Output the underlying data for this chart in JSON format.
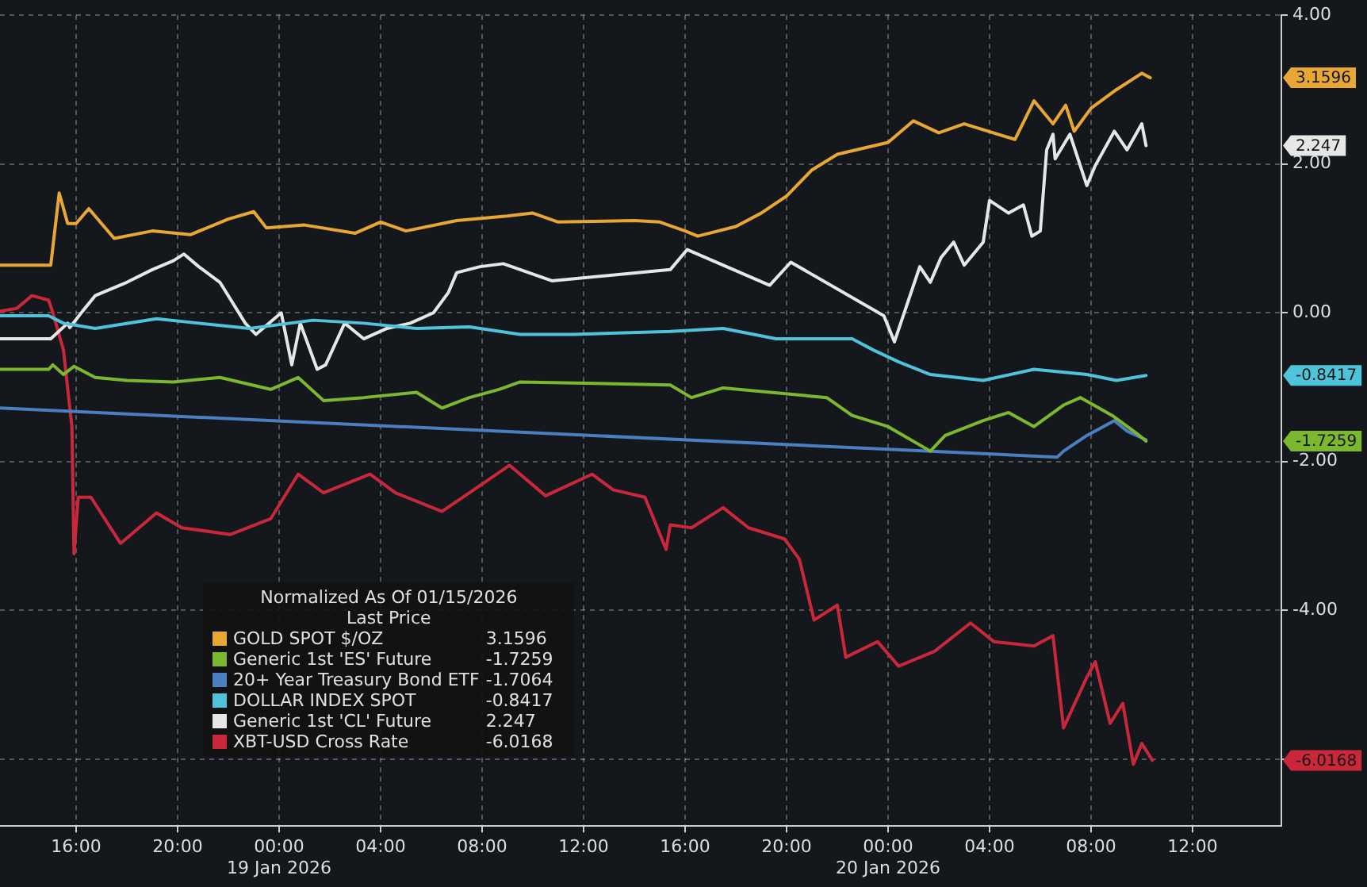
{
  "chart_data": {
    "type": "line",
    "legend": "bottom left",
    "annotations": [
      "3.1596",
      "-1.7259",
      "-1.7064",
      "-0.8417",
      "2.247",
      "-6.0168"
    ],
    "legend_title": "Normalized As Of 01/15/2026\nLast Price",
    "grid": true,
    "xlim": [
      "2026-01-18T13:00",
      "2026-01-20T15:30"
    ],
    "xticks": [
      {
        "value": "2026-01-18T16:00",
        "label": "16:00"
      },
      {
        "value": "2026-01-18T20:00",
        "label": "20:00"
      },
      {
        "value": "2026-01-19T00:00",
        "label": "00:00\n19 Jan 2026"
      },
      {
        "value": "2026-01-19T04:00",
        "label": "04:00"
      },
      {
        "value": "2026-01-19T08:00",
        "label": "08:00"
      },
      {
        "value": "2026-01-19T12:00",
        "label": "12:00"
      },
      {
        "value": "2026-01-19T16:00",
        "label": "16:00"
      },
      {
        "value": "2026-01-19T20:00",
        "label": "20:00"
      },
      {
        "value": "2026-01-20T00:00",
        "label": "00:00\n20 Jan 2026"
      },
      {
        "value": "2026-01-20T04:00",
        "label": "04:00"
      },
      {
        "value": "2026-01-20T08:00",
        "label": "08:00"
      },
      {
        "value": "2026-01-20T12:00",
        "label": "12:00"
      }
    ],
    "ylim": [
      -6.9,
      4.0
    ],
    "yticks": [
      {
        "value": 4,
        "label": "4.00"
      },
      {
        "value": 2,
        "label": "2.00"
      },
      {
        "value": 0,
        "label": "0.00"
      },
      {
        "value": -2,
        "label": "-2.00"
      },
      {
        "value": -4,
        "label": "-4.00"
      },
      {
        "value": -6,
        "label": null
      }
    ],
    "series": [
      {
        "name": "GOLD SPOT $/OZ",
        "color": "#e8a735",
        "x": [
          "2026-01-18T13:00",
          "2026-01-18T15:00",
          "2026-01-18T15:20",
          "2026-01-18T15:40",
          "2026-01-18T16:00",
          "2026-01-18T16:30",
          "2026-01-18T17:30",
          "2026-01-18T19:00",
          "2026-01-18T20:30",
          "2026-01-18T22:00",
          "2026-01-18T23:00",
          "2026-01-18T23:30",
          "2026-01-19T01:00",
          "2026-01-19T03:00",
          "2026-01-19T04:00",
          "2026-01-19T05:00",
          "2026-01-19T07:00",
          "2026-01-19T09:00",
          "2026-01-19T10:00",
          "2026-01-19T11:00",
          "2026-01-19T14:00",
          "2026-01-19T15:00",
          "2026-01-19T16:00",
          "2026-01-19T16:30",
          "2026-01-19T18:00",
          "2026-01-19T19:00",
          "2026-01-19T20:00",
          "2026-01-19T21:00",
          "2026-01-19T22:00",
          "2026-01-20T00:00",
          "2026-01-20T01:00",
          "2026-01-20T02:00",
          "2026-01-20T03:00",
          "2026-01-20T05:00",
          "2026-01-20T05:45",
          "2026-01-20T06:30",
          "2026-01-20T07:00",
          "2026-01-20T07:20",
          "2026-01-20T08:00",
          "2026-01-20T09:00",
          "2026-01-20T10:00",
          "2026-01-20T10:20"
        ],
        "values": [
          0.64,
          0.64,
          1.61,
          1.2,
          1.2,
          1.4,
          1.0,
          1.1,
          1.05,
          1.26,
          1.36,
          1.14,
          1.18,
          1.07,
          1.22,
          1.1,
          1.24,
          1.3,
          1.34,
          1.22,
          1.24,
          1.22,
          1.1,
          1.03,
          1.16,
          1.34,
          1.57,
          1.92,
          2.13,
          2.29,
          2.58,
          2.42,
          2.54,
          2.33,
          2.85,
          2.54,
          2.79,
          2.44,
          2.75,
          3.0,
          3.22,
          3.1596
        ]
      },
      {
        "name": "Generic 1st 'ES' Future",
        "color": "#7cb82f",
        "x": [
          "2026-01-18T13:00",
          "2026-01-18T14:55",
          "2026-01-18T15:05",
          "2026-01-18T15:30",
          "2026-01-18T15:55",
          "2026-01-18T16:45",
          "2026-01-18T18:00",
          "2026-01-18T19:50",
          "2026-01-18T21:40",
          "2026-01-18T23:40",
          "2026-01-19T00:45",
          "2026-01-19T01:45",
          "2026-01-19T03:20",
          "2026-01-19T05:25",
          "2026-01-19T06:25",
          "2026-01-19T07:30",
          "2026-01-19T08:40",
          "2026-01-19T09:30",
          "2026-01-19T15:25",
          "2026-01-19T16:15",
          "2026-01-19T17:30",
          "2026-01-19T21:35",
          "2026-01-19T22:35",
          "2026-01-20T00:00",
          "2026-01-20T01:40",
          "2026-01-20T02:15",
          "2026-01-20T03:45",
          "2026-01-20T04:45",
          "2026-01-20T05:45",
          "2026-01-20T06:55",
          "2026-01-20T07:35",
          "2026-01-20T08:50",
          "2026-01-20T09:50",
          "2026-01-20T10:10"
        ],
        "values": [
          -0.76,
          -0.76,
          -0.7,
          -0.83,
          -0.72,
          -0.87,
          -0.91,
          -0.93,
          -0.87,
          -1.03,
          -0.87,
          -1.18,
          -1.14,
          -1.07,
          -1.28,
          -1.14,
          -1.03,
          -0.93,
          -0.97,
          -1.14,
          -1.01,
          -1.14,
          -1.38,
          -1.53,
          -1.86,
          -1.65,
          -1.45,
          -1.34,
          -1.53,
          -1.24,
          -1.14,
          -1.38,
          -1.63,
          -1.7259
        ]
      },
      {
        "name": "20+ Year Treasury Bond ETF",
        "color": "#4a7fc1",
        "x": [
          "2026-01-18T13:00",
          "2026-01-20T06:40",
          "2026-01-20T06:55",
          "2026-01-20T07:50",
          "2026-01-20T08:55",
          "2026-01-20T09:25",
          "2026-01-20T10:10"
        ],
        "values": [
          -1.28,
          -1.94,
          -1.86,
          -1.65,
          -1.45,
          -1.59,
          -1.7064
        ]
      },
      {
        "name": "DOLLAR INDEX SPOT",
        "color": "#4fc3d9",
        "x": [
          "2026-01-18T13:00",
          "2026-01-18T14:55",
          "2026-01-18T15:30",
          "2026-01-18T16:45",
          "2026-01-18T19:10",
          "2026-01-18T20:50",
          "2026-01-18T22:50",
          "2026-01-19T01:20",
          "2026-01-19T03:20",
          "2026-01-19T05:25",
          "2026-01-19T07:30",
          "2026-01-19T09:30",
          "2026-01-19T11:35",
          "2026-01-19T15:25",
          "2026-01-19T17:30",
          "2026-01-19T19:35",
          "2026-01-19T22:35",
          "2026-01-19T23:25",
          "2026-01-20T00:25",
          "2026-01-20T01:40",
          "2026-01-20T03:45",
          "2026-01-20T05:45",
          "2026-01-20T07:50",
          "2026-01-20T09:00",
          "2026-01-20T10:10"
        ],
        "values": [
          -0.04,
          -0.04,
          -0.14,
          -0.21,
          -0.08,
          -0.14,
          -0.21,
          -0.1,
          -0.14,
          -0.21,
          -0.19,
          -0.29,
          -0.29,
          -0.25,
          -0.21,
          -0.35,
          -0.35,
          -0.5,
          -0.66,
          -0.83,
          -0.91,
          -0.76,
          -0.83,
          -0.91,
          -0.8417
        ]
      },
      {
        "name": "Generic 1st 'CL' Future",
        "color": "#e6e6e6",
        "x": [
          "2026-01-18T13:00",
          "2026-01-18T15:00",
          "2026-01-18T15:40",
          "2026-01-18T15:45",
          "2026-01-18T16:15",
          "2026-01-18T16:45",
          "2026-01-18T18:00",
          "2026-01-18T19:00",
          "2026-01-18T19:50",
          "2026-01-18T20:15",
          "2026-01-18T20:50",
          "2026-01-18T21:40",
          "2026-01-18T22:40",
          "2026-01-18T23:05",
          "2026-01-19T00:05",
          "2026-01-19T00:30",
          "2026-01-19T00:50",
          "2026-01-19T01:30",
          "2026-01-19T01:50",
          "2026-01-19T02:35",
          "2026-01-19T03:20",
          "2026-01-19T04:15",
          "2026-01-19T05:10",
          "2026-01-19T06:05",
          "2026-01-19T06:40",
          "2026-01-19T07:00",
          "2026-01-19T07:55",
          "2026-01-19T08:50",
          "2026-01-19T10:45",
          "2026-01-19T15:25",
          "2026-01-19T16:05",
          "2026-01-19T19:20",
          "2026-01-19T20:10",
          "2026-01-19T23:50",
          "2026-01-20T00:15",
          "2026-01-20T01:15",
          "2026-01-20T01:40",
          "2026-01-20T02:05",
          "2026-01-20T02:35",
          "2026-01-20T03:00",
          "2026-01-20T03:45",
          "2026-01-20T04:00",
          "2026-01-20T04:45",
          "2026-01-20T05:20",
          "2026-01-20T05:40",
          "2026-01-20T06:00",
          "2026-01-20T06:15",
          "2026-01-20T06:30",
          "2026-01-20T06:35",
          "2026-01-20T07:10",
          "2026-01-20T07:50",
          "2026-01-20T08:10",
          "2026-01-20T08:55",
          "2026-01-20T09:25",
          "2026-01-20T10:00",
          "2026-01-20T10:10"
        ],
        "values": [
          -0.35,
          -0.35,
          -0.14,
          -0.2,
          0.02,
          0.23,
          0.41,
          0.58,
          0.7,
          0.79,
          0.62,
          0.41,
          -0.14,
          -0.29,
          0.0,
          -0.7,
          -0.14,
          -0.76,
          -0.7,
          -0.14,
          -0.35,
          -0.21,
          -0.14,
          0.0,
          0.27,
          0.54,
          0.62,
          0.66,
          0.43,
          0.58,
          0.85,
          0.37,
          0.68,
          -0.04,
          -0.39,
          0.62,
          0.41,
          0.74,
          0.95,
          0.64,
          0.95,
          1.51,
          1.34,
          1.45,
          1.03,
          1.1,
          2.19,
          2.4,
          2.07,
          2.4,
          1.71,
          1.98,
          2.44,
          2.19,
          2.54,
          2.247
        ]
      },
      {
        "name": "XBT-USD Cross Rate",
        "color": "#c8283a",
        "x": [
          "2026-01-18T13:00",
          "2026-01-18T13:40",
          "2026-01-18T14:15",
          "2026-01-18T14:55",
          "2026-01-18T15:05",
          "2026-01-18T15:30",
          "2026-01-18T15:50",
          "2026-01-18T15:55",
          "2026-01-18T16:05",
          "2026-01-18T16:35",
          "2026-01-18T17:45",
          "2026-01-18T19:10",
          "2026-01-18T20:10",
          "2026-01-18T22:05",
          "2026-01-18T23:40",
          "2026-01-19T00:45",
          "2026-01-19T01:45",
          "2026-01-19T03:35",
          "2026-01-19T04:35",
          "2026-01-19T06:25",
          "2026-01-19T07:30",
          "2026-01-19T09:05",
          "2026-01-19T10:30",
          "2026-01-19T12:20",
          "2026-01-19T13:10",
          "2026-01-19T14:25",
          "2026-01-19T15:15",
          "2026-01-19T15:25",
          "2026-01-19T16:15",
          "2026-01-19T17:30",
          "2026-01-19T18:30",
          "2026-01-19T19:55",
          "2026-01-19T20:30",
          "2026-01-19T21:05",
          "2026-01-19T22:00",
          "2026-01-19T22:20",
          "2026-01-19T23:35",
          "2026-01-20T00:25",
          "2026-01-20T01:50",
          "2026-01-20T03:15",
          "2026-01-20T04:10",
          "2026-01-20T05:45",
          "2026-01-20T06:30",
          "2026-01-20T06:55",
          "2026-01-20T07:50",
          "2026-01-20T08:10",
          "2026-01-20T08:45",
          "2026-01-20T09:15",
          "2026-01-20T09:40",
          "2026-01-20T10:00",
          "2026-01-20T10:25"
        ],
        "values": [
          0.02,
          0.06,
          0.23,
          0.17,
          0.0,
          -0.5,
          -1.53,
          -3.24,
          -2.48,
          -2.48,
          -3.1,
          -2.69,
          -2.89,
          -2.98,
          -2.77,
          -2.17,
          -2.42,
          -2.17,
          -2.42,
          -2.67,
          -2.42,
          -2.05,
          -2.46,
          -2.17,
          -2.38,
          -2.48,
          -3.18,
          -2.85,
          -2.89,
          -2.62,
          -2.89,
          -3.04,
          -3.31,
          -4.13,
          -3.93,
          -4.63,
          -4.42,
          -4.75,
          -4.55,
          -4.17,
          -4.42,
          -4.48,
          -4.34,
          -5.58,
          -4.9,
          -4.69,
          -5.52,
          -5.25,
          -6.07,
          -5.79,
          -6.0168
        ]
      }
    ]
  }
}
